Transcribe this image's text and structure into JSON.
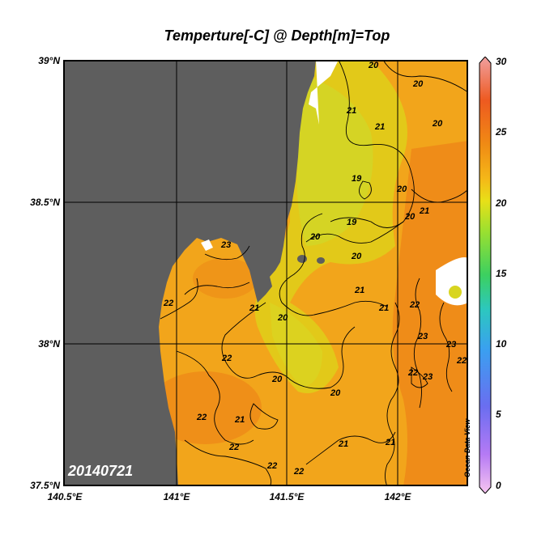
{
  "title": "Temperture[-C] @ Depth[m]=Top",
  "date_stamp": "20140721",
  "watermark": "Ocean Data View",
  "lat_labels": [
    "39°N",
    "38.5°N",
    "38°N",
    "37.5°N"
  ],
  "lon_labels": [
    "140.5°E",
    "141°E",
    "141.5°E",
    "142°E"
  ],
  "colorbar": {
    "ticks": [
      "30",
      "25",
      "20",
      "15",
      "10",
      "5",
      "0"
    ],
    "stops": [
      "#f7c6f0",
      "#b57af5",
      "#6a6ef0",
      "#3aa0f0",
      "#2cc7c0",
      "#3cd060",
      "#9be030",
      "#e8e018",
      "#f5b818",
      "#f08a14",
      "#ee5a20",
      "#f0a0a0"
    ]
  },
  "contour_labels": [
    "20",
    "20",
    "21",
    "21",
    "20",
    "19",
    "19",
    "20",
    "20",
    "21",
    "20",
    "20",
    "21",
    "23",
    "22",
    "21",
    "20",
    "21",
    "22",
    "22",
    "23",
    "23",
    "22",
    "22",
    "20",
    "20",
    "21",
    "22",
    "21",
    "21",
    "22",
    "22",
    "22",
    "23"
  ],
  "colors": {
    "land": "#5e5e5e",
    "warm": "#f2a21a",
    "mid": "#e9c417",
    "cool": "#d9d623",
    "hot": "#ef8a18"
  }
}
